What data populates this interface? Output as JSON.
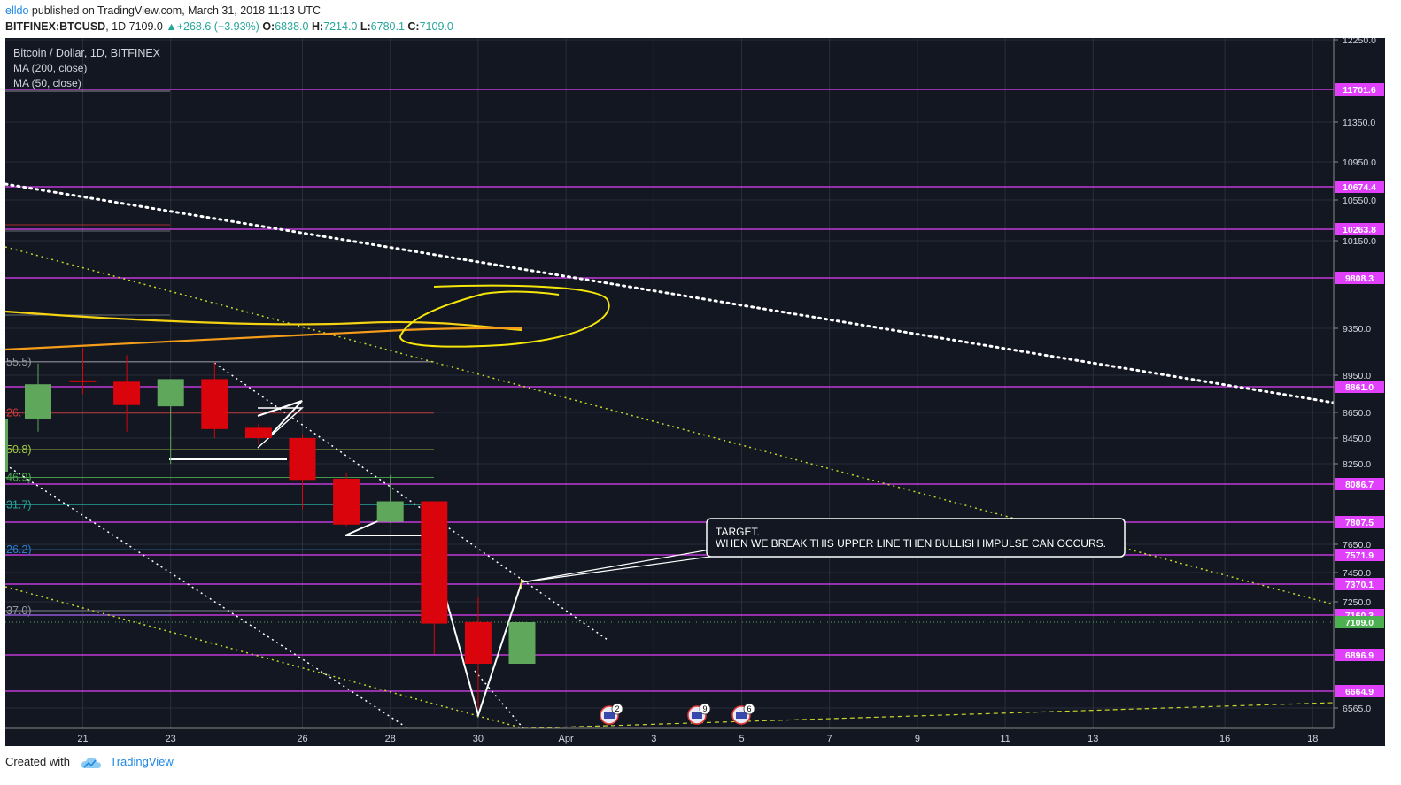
{
  "header": {
    "author": "elldo",
    "published_text": " published on TradingView.com, March 31, 2018 11:13 UTC"
  },
  "symbol_bar": {
    "symbol": "BITFINEX:BTCUSD",
    "interval": "1D",
    "last": "7109.0",
    "change": "+268.6 (+3.93%)",
    "o_label": "O:",
    "o": "6838.0",
    "h_label": "H:",
    "h": "7214.0",
    "l_label": "L:",
    "l": "6780.1",
    "c_label": "C:",
    "c": "7109.0"
  },
  "legend": {
    "title": "Bitcoin / Dollar, 1D, BITFINEX",
    "ma200": "MA (200, close)",
    "ma50": "MA (50, close)"
  },
  "annotation": {
    "line1": "TARGET.",
    "line2": "WHEN WE BREAK THIS UPPER LINE THEN BULLISH IMPULSE CAN OCCURS."
  },
  "footer": {
    "created_with": "Created with",
    "brand": "TradingView"
  },
  "colors": {
    "background": "#131722",
    "grid": "#2a2e39",
    "up": "#5fa85b",
    "down": "#d9040c",
    "level": "#e040fb",
    "last_price": "#4caf50",
    "ma200": "#f59c1a",
    "ma50": "#f5d312",
    "trend_white": "#ffffff",
    "trend_yellow": "#c9d62a"
  },
  "chart_data": {
    "type": "candlestick",
    "y_axis": {
      "min": 6400,
      "max": 12300,
      "ticks": [
        "12250.0",
        "11350.0",
        "10950.0",
        "10550.0",
        "10150.0",
        "9350.0",
        "8950.0",
        "8650.0",
        "8450.0",
        "8250.0",
        "7650.0",
        "7450.0",
        "7250.0",
        "6565.0"
      ]
    },
    "x_axis": {
      "ticks": [
        {
          "label": "21",
          "idx": 0
        },
        {
          "label": "23",
          "idx": 2
        },
        {
          "label": "26",
          "idx": 5
        },
        {
          "label": "28",
          "idx": 7
        },
        {
          "label": "30",
          "idx": 9
        },
        {
          "label": "Apr",
          "idx": 11
        },
        {
          "label": "3",
          "idx": 13
        },
        {
          "label": "5",
          "idx": 15
        },
        {
          "label": "7",
          "idx": 17
        },
        {
          "label": "9",
          "idx": 19
        },
        {
          "label": "11",
          "idx": 21
        },
        {
          "label": "13",
          "idx": 23
        },
        {
          "label": "16",
          "idx": 26
        },
        {
          "label": "18",
          "idx": 28
        }
      ]
    },
    "candles": [
      {
        "idx": -1,
        "o": 8600,
        "h": 9050,
        "l": 8500,
        "c": 8880
      },
      {
        "idx": 0,
        "o": 8910,
        "h": 9180,
        "l": 8800,
        "c": 8900
      },
      {
        "idx": 1,
        "o": 8900,
        "h": 9120,
        "l": 8500,
        "c": 8710
      },
      {
        "idx": 2,
        "o": 8700,
        "h": 8920,
        "l": 8250,
        "c": 8920
      },
      {
        "idx": 3,
        "o": 8920,
        "h": 9060,
        "l": 8450,
        "c": 8520
      },
      {
        "idx": 4,
        "o": 8530,
        "h": 8560,
        "l": 8400,
        "c": 8450
      },
      {
        "idx": 5,
        "o": 8450,
        "h": 8480,
        "l": 7900,
        "c": 8120
      },
      {
        "idx": 6,
        "o": 8130,
        "h": 8180,
        "l": 7780,
        "c": 7790
      },
      {
        "idx": 7,
        "o": 7810,
        "h": 8160,
        "l": 7800,
        "c": 7960
      },
      {
        "idx": 8,
        "o": 7960,
        "h": 7960,
        "l": 6900,
        "c": 7100
      },
      {
        "idx": 9,
        "o": 7110,
        "h": 7280,
        "l": 6560,
        "c": 6840
      },
      {
        "idx": 10,
        "o": 6840,
        "h": 7214,
        "l": 6780,
        "c": 7109
      }
    ],
    "horizontal_levels": [
      "11701.6",
      "10674.4",
      "10263.8",
      "9808.3",
      "8861.0",
      "8086.7",
      "7807.5",
      "7571.9",
      "7370.1",
      "7160.3",
      "6896.9",
      "6664.9"
    ],
    "last_price_label": "7109.0",
    "fib_labels": [
      {
        "text": "55.5)",
        "price": 9065
      },
      {
        "text": "26.",
        "price": 8645
      },
      {
        "text": "50.8)",
        "price": 8360
      },
      {
        "text": "46.9)",
        "price": 8140
      },
      {
        "text": "31.7)",
        "price": 7935
      },
      {
        "text": "26.2)",
        "price": 7610
      },
      {
        "text": "37.0)",
        "price": 7190
      }
    ],
    "event_badges": [
      "2",
      "9",
      "6"
    ]
  }
}
